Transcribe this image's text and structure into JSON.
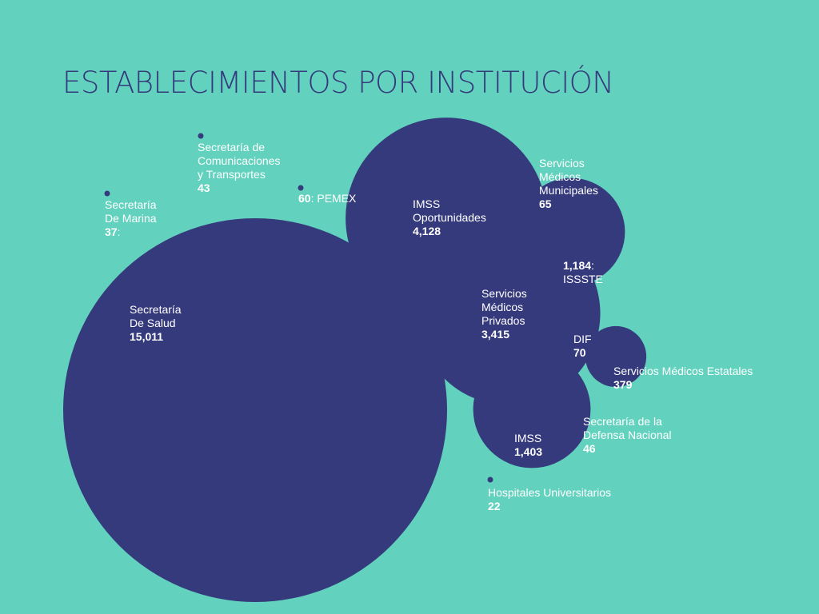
{
  "title": "ESTABLECIMIENTOS POR INSTITUCIÓN",
  "colors": {
    "background": "#62D2BE",
    "bubble": "#353A7C",
    "label": "#FFFFFF",
    "title": "#353A7C"
  },
  "chart_data": {
    "type": "bubble",
    "title": "ESTABLECIMIENTOS POR INSTITUCIÓN",
    "unit": "establecimientos",
    "points": [
      {
        "name": [
          "Secretaría",
          "De Salud"
        ],
        "value": 15011,
        "display": "15,011"
      },
      {
        "name": [
          "IMSS",
          "Oportunidades"
        ],
        "value": 4128,
        "display": "4,128"
      },
      {
        "name": [
          "Servicios",
          "Médicos",
          "Privados"
        ],
        "value": 3415,
        "display": "3,415"
      },
      {
        "name": [
          "IMSS"
        ],
        "value": 1403,
        "display": "1,403"
      },
      {
        "name": [
          "ISSSTE"
        ],
        "value": 1184,
        "display": "1,184",
        "value_first": true,
        "value_suffix": ":"
      },
      {
        "name": [
          "Servicios Médicos Estatales"
        ],
        "value": 379,
        "display": "379"
      },
      {
        "name": [
          "DIF"
        ],
        "value": 70,
        "display": "70"
      },
      {
        "name": [
          "Servicios",
          "Médicos",
          "Municipales"
        ],
        "value": 65,
        "display": "65"
      },
      {
        "name": [
          "PEMEX"
        ],
        "value": 60,
        "display": "60",
        "value_first": true,
        "value_suffix": ":",
        "inline": true
      },
      {
        "name": [
          "Secretaría de la",
          "Defensa Nacional"
        ],
        "value": 46,
        "display": "46"
      },
      {
        "name": [
          "Secretaría de",
          "Comunicaciones",
          "y Transportes"
        ],
        "value": 43,
        "display": "43"
      },
      {
        "name": [
          "Secretaría",
          "De Marina"
        ],
        "value": 37,
        "display": "37",
        "value_suffix": ":"
      },
      {
        "name": [
          "Hospitales Universitarios"
        ],
        "value": 22,
        "display": "22"
      }
    ]
  }
}
